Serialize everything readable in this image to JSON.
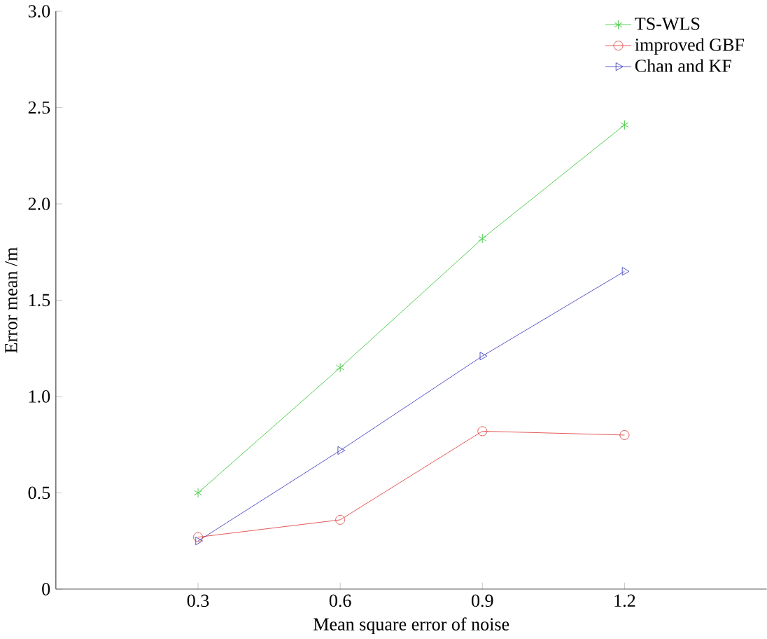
{
  "chart_data": {
    "type": "line",
    "xlabel": "Mean square error of noise",
    "ylabel": "Error mean /m",
    "x": [
      0.3,
      0.6,
      0.9,
      1.2
    ],
    "xlim": [
      0,
      1.5
    ],
    "xticks": [
      0.3,
      0.6,
      0.9,
      1.2
    ],
    "ylim": [
      0,
      3
    ],
    "yticks": [
      0,
      0.5,
      {
        "value": 1,
        "label": "1.0"
      },
      1.5,
      {
        "value": 2,
        "label": "2.0"
      },
      2.5,
      {
        "value": 3,
        "label": "3.0"
      }
    ],
    "legend": "top right",
    "line_style": "solid",
    "series": [
      {
        "name": "TS-WLS",
        "color": "#3cc83c",
        "marker": "cross",
        "values": [
          0.5,
          1.15,
          1.82,
          2.41
        ]
      },
      {
        "name": "improved GBF",
        "color": "#e04040",
        "marker": "circle",
        "values": [
          0.27,
          0.36,
          0.82,
          0.8
        ]
      },
      {
        "name": "Chan and KF",
        "color": "#4040c0",
        "marker": "triangle",
        "values": [
          0.25,
          0.72,
          1.21,
          1.65
        ]
      }
    ]
  }
}
